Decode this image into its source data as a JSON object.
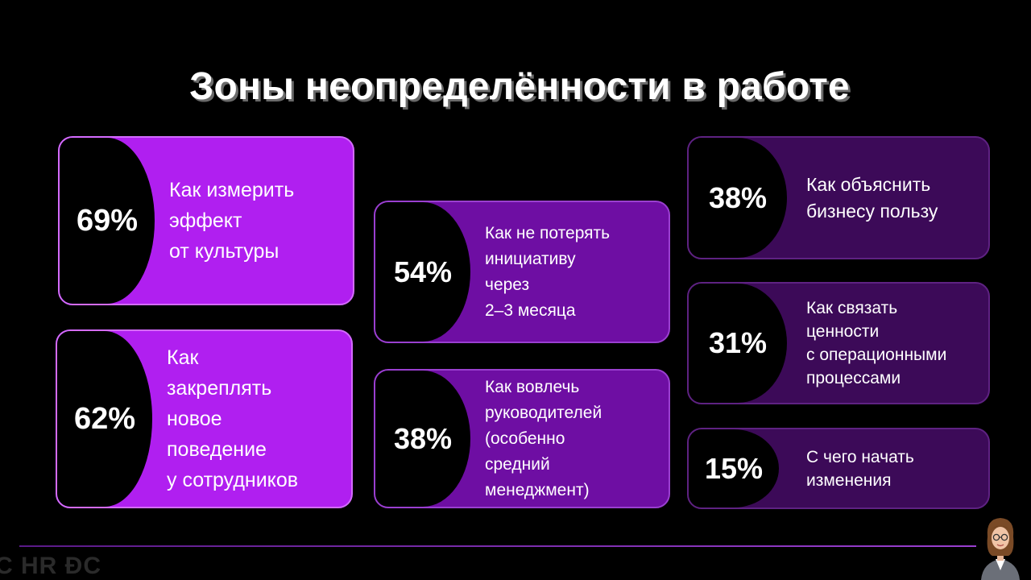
{
  "title": "Зоны неопределённости в работе",
  "cards": [
    {
      "percent": "69%",
      "lines": [
        "Как измерить",
        "эффект",
        "от культуры"
      ]
    },
    {
      "percent": "62%",
      "lines": [
        "Как",
        "закреплять",
        "новое",
        "поведение",
        "у сотрудников"
      ]
    },
    {
      "percent": "54%",
      "lines": [
        "Как не потерять",
        "инициативу",
        "через",
        "2–3 месяца"
      ]
    },
    {
      "percent": "38%",
      "lines": [
        "Как вовлечь",
        "руководителей",
        "(особенно",
        "средний",
        "менеджмент)"
      ]
    },
    {
      "percent": "38%",
      "lines": [
        "Как объяснить",
        "бизнесу пользу"
      ]
    },
    {
      "percent": "31%",
      "lines": [
        "Как связать",
        "ценности",
        "с операционными",
        "процессами"
      ]
    },
    {
      "percent": "15%",
      "lines": [
        "С чего начать",
        "изменения"
      ]
    }
  ],
  "footer": {
    "logo": "С HR ÐC",
    "avatar_icon": "woman-avatar-icon"
  },
  "colors": {
    "bright": "#b01ff0",
    "mid": "#6e0ea3",
    "dark": "#3c0a58",
    "background": "#000000"
  }
}
